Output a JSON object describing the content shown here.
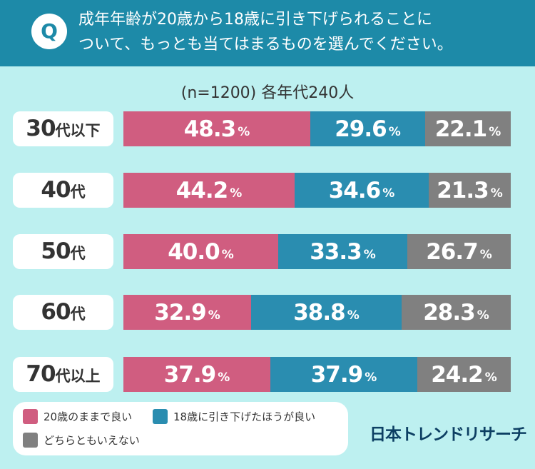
{
  "question": {
    "badge": "Q",
    "line1": "成年年齢が20歳から18歳に引き下げられることに",
    "line2": "ついて、もっとも当てはまるものを選んでください。"
  },
  "chart_data": {
    "type": "bar",
    "orientation": "horizontal",
    "stacked": true,
    "title": "(n=1200) 各年代240人",
    "unit": "%",
    "categories": [
      {
        "num": "30",
        "unit": "代以下"
      },
      {
        "num": "40",
        "unit": "代"
      },
      {
        "num": "50",
        "unit": "代"
      },
      {
        "num": "60",
        "unit": "代"
      },
      {
        "num": "70",
        "unit": "代以上"
      }
    ],
    "series": [
      {
        "name": "20歳のままで良い",
        "color": "#d05d80",
        "values": [
          48.3,
          44.2,
          40.0,
          32.9,
          37.9
        ]
      },
      {
        "name": "18歳に引き下げたほうが良い",
        "color": "#2a8db0",
        "values": [
          29.6,
          34.6,
          33.3,
          38.8,
          37.9
        ]
      },
      {
        "name": "どちらともいえない",
        "color": "#808080",
        "values": [
          22.1,
          21.3,
          26.7,
          28.3,
          24.2
        ]
      }
    ],
    "xlim": [
      0,
      100
    ]
  },
  "logo": "日本トレンドリサーチ"
}
